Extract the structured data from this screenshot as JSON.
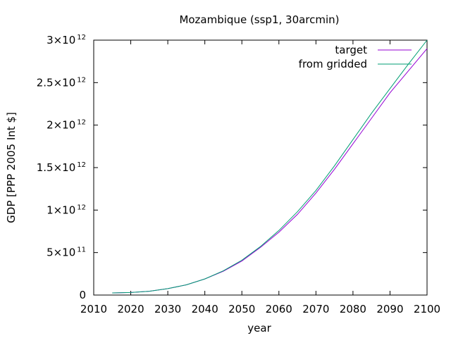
{
  "chart_data": {
    "type": "line",
    "title": "Mozambique (ssp1, 30arcmin)",
    "xlabel": "year",
    "ylabel": "GDP [PPP 2005 Int $]",
    "xlim": [
      2010,
      2100
    ],
    "ylim": [
      0,
      3000000000000
    ],
    "grid": false,
    "legend_position": "top-right",
    "x_ticks": [
      "2010",
      "2020",
      "2030",
      "2040",
      "2050",
      "2060",
      "2070",
      "2080",
      "2090",
      "2100"
    ],
    "y_ticks": [
      {
        "value": 0,
        "mantissa": "0",
        "exp": ""
      },
      {
        "value": 500000000000,
        "mantissa": "5×10",
        "exp": "11"
      },
      {
        "value": 1000000000000,
        "mantissa": "1×10",
        "exp": "12"
      },
      {
        "value": 1500000000000,
        "mantissa": "1.5×10",
        "exp": "12"
      },
      {
        "value": 2000000000000,
        "mantissa": "2×10",
        "exp": "12"
      },
      {
        "value": 2500000000000,
        "mantissa": "2.5×10",
        "exp": "12"
      },
      {
        "value": 3000000000000,
        "mantissa": "3×10",
        "exp": "12"
      }
    ],
    "x": [
      2015,
      2020,
      2025,
      2030,
      2035,
      2040,
      2045,
      2050,
      2055,
      2060,
      2065,
      2070,
      2075,
      2080,
      2085,
      2090,
      2095,
      2100
    ],
    "series": [
      {
        "name": "target",
        "color": "#9400d3",
        "values": [
          25000000000,
          30000000000,
          45000000000,
          75000000000,
          120000000000,
          190000000000,
          280000000000,
          400000000000,
          560000000000,
          740000000000,
          950000000000,
          1200000000000,
          1480000000000,
          1780000000000,
          2080000000000,
          2380000000000,
          2640000000000,
          2900000000000
        ]
      },
      {
        "name": "from gridded",
        "color": "#009e73",
        "values": [
          25000000000,
          30000000000,
          45000000000,
          75000000000,
          120000000000,
          190000000000,
          285000000000,
          410000000000,
          570000000000,
          760000000000,
          980000000000,
          1230000000000,
          1520000000000,
          1830000000000,
          2140000000000,
          2430000000000,
          2720000000000,
          3000000000000
        ]
      }
    ]
  }
}
